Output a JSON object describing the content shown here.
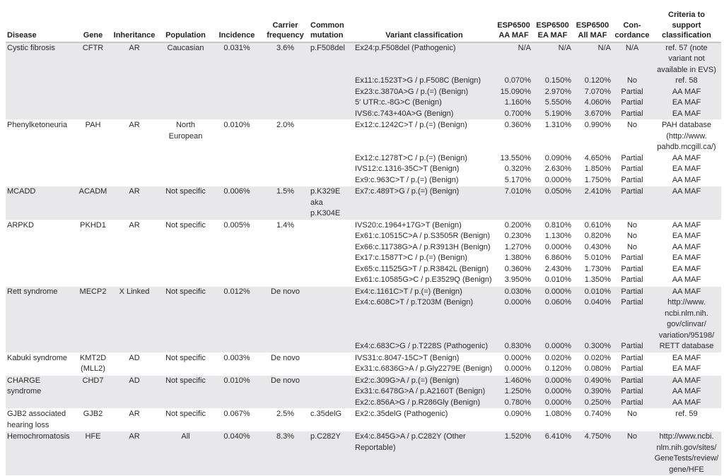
{
  "headers": {
    "disease": "Disease",
    "gene": "Gene",
    "inheritance": "Inheritance",
    "population": "Population",
    "incidence": "Incidence",
    "carrier": "Carrier frequency",
    "common": "Common mutation",
    "variant": "Variant classification",
    "aa": "ESP6500 AA MAF",
    "ea": "ESP6500 EA MAF",
    "all": "ESP6500 All MAF",
    "concordance": "Con-cordance",
    "criteria": "Criteria to support classification"
  },
  "diseases": [
    {
      "disease": "Cystic fibrosis",
      "gene": "CFTR",
      "inheritance": "AR",
      "population": "Caucasian",
      "incidence": "0.031%",
      "carrier": "3.6%",
      "common": "p.F508del",
      "variants": [
        {
          "variant": "Ex24:p.F508del (Pathogenic)",
          "aa": "N/A",
          "ea": "N/A",
          "all": "N/A",
          "concordance": "N/A",
          "criteria": "ref. 57 (note variant not available in EVS)"
        },
        {
          "variant": "Ex11:c.1523T>G / p.F508C (Benign)",
          "aa": "0.070%",
          "ea": "0.150%",
          "all": "0.120%",
          "concordance": "No",
          "criteria": "ref. 58"
        },
        {
          "variant": "Ex23:c.3870A>G / p.(=) (Benign)",
          "aa": "15.090%",
          "ea": "2.970%",
          "all": "7.070%",
          "concordance": "Partial",
          "criteria": "AA MAF"
        },
        {
          "variant": "5' UTR:c.-8G>C (Benign)",
          "aa": "1.160%",
          "ea": "5.550%",
          "all": "4.060%",
          "concordance": "Partial",
          "criteria": "EA MAF"
        },
        {
          "variant": "IVS6:c.743+40A>G (Benign)",
          "aa": "0.700%",
          "ea": "5.190%",
          "all": "3.670%",
          "concordance": "Partial",
          "criteria": "EA MAF"
        }
      ]
    },
    {
      "disease": "Phenylketoneuria",
      "gene": "PAH",
      "inheritance": "AR",
      "population": "North European",
      "incidence": "0.010%",
      "carrier": "2.0%",
      "common": "",
      "variants": [
        {
          "variant": "Ex12:c.1242C>T / p.(=) (Benign)",
          "aa": "0.360%",
          "ea": "1.310%",
          "all": "0.990%",
          "concordance": "No",
          "criteria": "PAH database (http://www. pahdb.mcgill.ca/)"
        },
        {
          "variant": "Ex12:c.1278T>C / p.(=) (Benign)",
          "aa": "13.550%",
          "ea": "0.090%",
          "all": "4.650%",
          "concordance": "Partial",
          "criteria": "AA MAF"
        },
        {
          "variant": "IVS12:c.1316-35C>T (Benign)",
          "aa": "0.320%",
          "ea": "2.630%",
          "all": "1.850%",
          "concordance": "Partial",
          "criteria": "EA MAF"
        },
        {
          "variant": "Ex9:c.963C>T / p.(=) (Benign)",
          "aa": "5.170%",
          "ea": "0.000%",
          "all": "1.750%",
          "concordance": "Partial",
          "criteria": "AA MAF"
        }
      ]
    },
    {
      "disease": "MCADD",
      "gene": "ACADM",
      "inheritance": "AR",
      "population": "Not specific",
      "incidence": "0.006%",
      "carrier": "1.5%",
      "common": "p.K329E aka p.K304E",
      "variants": [
        {
          "variant": "Ex7:c.489T>G / p.(=) (Benign)",
          "aa": "7.010%",
          "ea": "0.050%",
          "all": "2.410%",
          "concordance": "Partial",
          "criteria": "AA MAF"
        }
      ]
    },
    {
      "disease": "ARPKD",
      "gene": "PKHD1",
      "inheritance": "AR",
      "population": "Not specific",
      "incidence": "0.005%",
      "carrier": "1.4%",
      "common": "",
      "variants": [
        {
          "variant": "IVS20:c.1964+17G>T (Benign)",
          "aa": "0.200%",
          "ea": "0.810%",
          "all": "0.610%",
          "concordance": "No",
          "criteria": "AA MAF"
        },
        {
          "variant": "Ex61:c.10515C>A / p.S3505R (Benign)",
          "aa": "0.230%",
          "ea": "1.130%",
          "all": "0.820%",
          "concordance": "No",
          "criteria": "EA MAF"
        },
        {
          "variant": "Ex66:c.11738G>A / p.R3913H (Benign)",
          "aa": "1.270%",
          "ea": "0.000%",
          "all": "0.430%",
          "concordance": "No",
          "criteria": "AA MAF"
        },
        {
          "variant": "Ex17:c.1587T>C / p.(=) (Benign)",
          "aa": "1.380%",
          "ea": "6.860%",
          "all": "5.010%",
          "concordance": "Partial",
          "criteria": "EA MAF"
        },
        {
          "variant": "Ex65:c.11525G>T / p.R3842L (Benign)",
          "aa": "0.360%",
          "ea": "2.430%",
          "all": "1.730%",
          "concordance": "Partial",
          "criteria": "EA MAF"
        },
        {
          "variant": "Ex61:c.10585G>C / p.E3529Q (Benign)",
          "aa": "3.950%",
          "ea": "0.010%",
          "all": "1.350%",
          "concordance": "Partial",
          "criteria": "AA MAF"
        }
      ]
    },
    {
      "disease": "Rett syndrome",
      "gene": "MECP2",
      "inheritance": "X Linked",
      "population": "Not specific",
      "incidence": "0.012%",
      "carrier": "De novo",
      "common": "",
      "variants": [
        {
          "variant": "Ex4:c.1161C>T / p.(=) (Benign)",
          "aa": "0.030%",
          "ea": "0.000%",
          "all": "0.010%",
          "concordance": "Partial",
          "criteria": "AA MAF"
        },
        {
          "variant": "Ex4:c.608C>T / p.T203M (Benign)",
          "aa": "0.000%",
          "ea": "0.060%",
          "all": "0.040%",
          "concordance": "Partial",
          "criteria": "http://www. ncbi.nlm.nih. gov/clinvar/ variation/95198/"
        },
        {
          "variant": "Ex4:c.683C>G / p.T228S (Pathogenic)",
          "aa": "0.830%",
          "ea": "0.000%",
          "all": "0.300%",
          "concordance": "Partial",
          "criteria": "RETT database"
        }
      ]
    },
    {
      "disease": "Kabuki syndrome",
      "gene": "KMT2D (MLL2)",
      "inheritance": "AD",
      "population": "Not specific",
      "incidence": "0.003%",
      "carrier": "De novo",
      "common": "",
      "variants": [
        {
          "variant": "IVS31:c.8047-15C>T (Benign)",
          "aa": "0.000%",
          "ea": "0.020%",
          "all": "0.020%",
          "concordance": "Partial",
          "criteria": "EA MAF"
        },
        {
          "variant": "Ex31:c.6836G>A / p.Gly2279E (Benign)",
          "aa": "0.000%",
          "ea": "0.120%",
          "all": "0.080%",
          "concordance": "Partial",
          "criteria": "EA MAF"
        }
      ]
    },
    {
      "disease": "CHARGE syndrome",
      "gene": "CHD7",
      "inheritance": "AD",
      "population": "Not specific",
      "incidence": "0.010%",
      "carrier": "De novo",
      "common": "",
      "variants": [
        {
          "variant": "Ex2:c.309G>A / p.(=) (Benign)",
          "aa": "1.460%",
          "ea": "0.000%",
          "all": "0.490%",
          "concordance": "Partial",
          "criteria": "AA MAF"
        },
        {
          "variant": "Ex31:c.6478G>A / p.A2160T (Benign)",
          "aa": "1.250%",
          "ea": "0.000%",
          "all": "0.390%",
          "concordance": "Partial",
          "criteria": "AA MAF"
        },
        {
          "variant": "Ex2:c.856A>G / p.R286Gly (Benign)",
          "aa": "0.780%",
          "ea": "0.000%",
          "all": "0.250%",
          "concordance": "Partial",
          "criteria": "AA MAF"
        }
      ]
    },
    {
      "disease": "GJB2 associated hearing loss",
      "gene": "GJB2",
      "inheritance": "AR",
      "population": "Not specific",
      "incidence": "0.067%",
      "carrier": "2.5%",
      "common": "c.35delG",
      "variants": [
        {
          "variant": "Ex2:c.35delG (Pathogenic)",
          "aa": "0.090%",
          "ea": "1.080%",
          "all": "0.740%",
          "concordance": "No",
          "criteria": "ref. 59"
        }
      ]
    },
    {
      "disease": "Hemochromatosis",
      "gene": "HFE",
      "inheritance": "AR",
      "population": "All",
      "incidence": "0.040%",
      "carrier": "8.3%",
      "common": "p.C282Y",
      "variants": [
        {
          "variant": "Ex4:c.845G>A / p.C282Y (Other Reportable)",
          "aa": "1.520%",
          "ea": "6.410%",
          "all": "4.750%",
          "concordance": "No",
          "criteria": "http://www.ncbi. nlm.nih.gov/sites/ GeneTests/review/ gene/HFE"
        }
      ]
    }
  ]
}
